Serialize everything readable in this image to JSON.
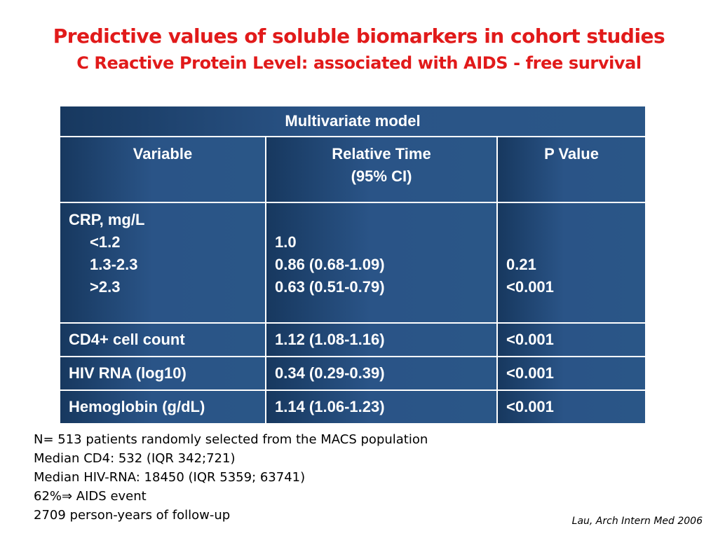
{
  "slide": {
    "title": "Predictive values of soluble biomarkers in cohort studies",
    "subtitle": "C Reactive Protein Level: associated with AIDS - free survival"
  },
  "table": {
    "main_header": "Multivariate model",
    "columns": {
      "variable": "Variable",
      "relative_time_line1": "Relative Time",
      "relative_time_line2": "(95% CI)",
      "p_value": "P Value"
    },
    "crp": {
      "label": "CRP, mg/L",
      "levels": [
        "<1.2",
        "1.3-2.3",
        ">2.3"
      ],
      "relative_times": [
        "1.0",
        "0.86  (0.68-1.09)",
        "0.63  (0.51-0.79)"
      ],
      "p_values": [
        "0.21",
        "<0.001"
      ]
    },
    "rows": [
      {
        "variable": "CD4+ cell count",
        "relative_time": "1.12  (1.08-1.16)",
        "p_value": "<0.001"
      },
      {
        "variable": "HIV RNA (log10)",
        "relative_time": "0.34  (0.29-0.39)",
        "p_value": "<0.001"
      },
      {
        "variable": "Hemoglobin (g/dL)",
        "relative_time": "1.14  (1.06-1.23)",
        "p_value": "<0.001"
      }
    ]
  },
  "notes": [
    "N= 513 patients randomly  selected from the MACS population",
    "Median CD4: 532 (IQR 342;721)",
    "Median HIV-RNA: 18450 (IQR 5359; 63741)",
    "62%⇒ AIDS event",
    "2709 person-years of follow-up"
  ],
  "citation": "Lau, Arch Intern Med 2006"
}
